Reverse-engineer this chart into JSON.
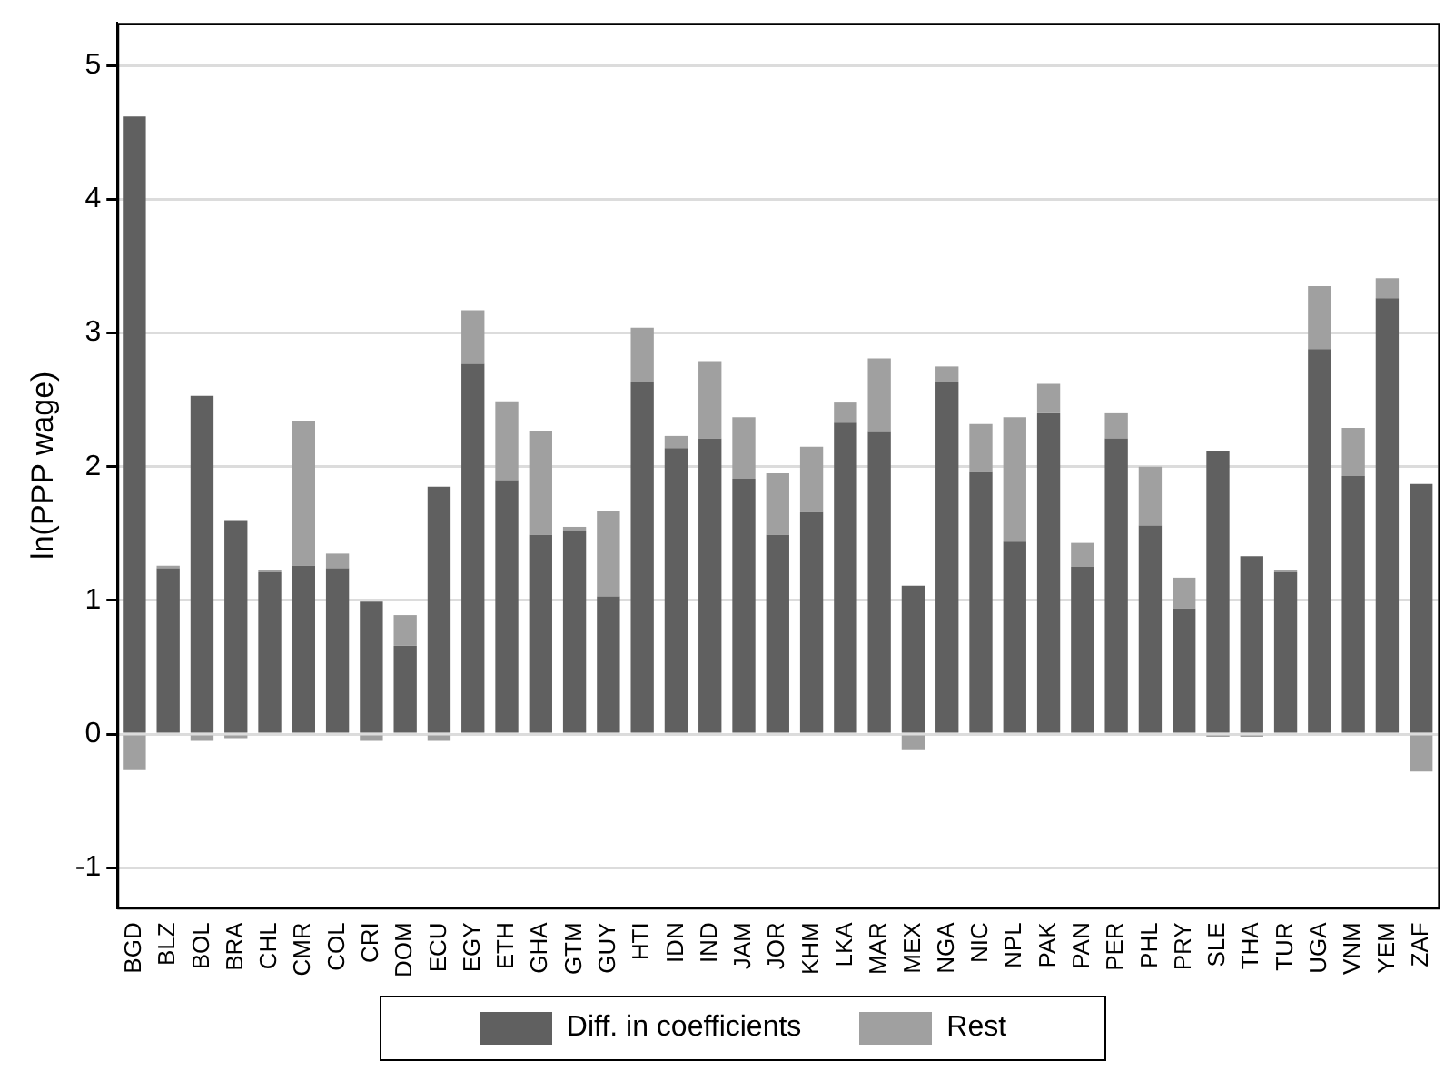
{
  "chart_data": {
    "type": "bar",
    "stacked": true,
    "ylabel": "ln(PPP wage)",
    "categories": [
      "BGD",
      "BLZ",
      "BOL",
      "BRA",
      "CHL",
      "CMR",
      "COL",
      "CRI",
      "DOM",
      "ECU",
      "EGY",
      "ETH",
      "GHA",
      "GTM",
      "GUY",
      "HTI",
      "IDN",
      "IND",
      "JAM",
      "JOR",
      "KHM",
      "LKA",
      "MAR",
      "MEX",
      "NGA",
      "NIC",
      "NPL",
      "PAK",
      "PAN",
      "PER",
      "PHL",
      "PRY",
      "SLE",
      "THA",
      "TUR",
      "UGA",
      "VNM",
      "YEM",
      "ZAF"
    ],
    "series": [
      {
        "name": "Diff. in coefficients",
        "color": "#606060",
        "values": [
          4.62,
          1.24,
          2.53,
          1.6,
          1.21,
          1.26,
          1.24,
          0.99,
          0.66,
          1.85,
          2.77,
          1.9,
          1.49,
          1.52,
          1.03,
          2.63,
          2.14,
          2.21,
          1.91,
          1.49,
          1.66,
          2.33,
          2.26,
          1.11,
          2.63,
          1.96,
          1.44,
          2.4,
          1.25,
          2.21,
          1.56,
          0.94,
          2.12,
          1.33,
          1.21,
          2.88,
          1.93,
          3.26,
          1.87
        ]
      },
      {
        "name": "Rest",
        "color": "#a0a0a0",
        "values": [
          -0.27,
          0.02,
          -0.05,
          -0.03,
          0.02,
          1.08,
          0.11,
          -0.05,
          0.23,
          -0.05,
          0.4,
          0.59,
          0.78,
          0.03,
          0.64,
          0.41,
          0.09,
          0.58,
          0.46,
          0.46,
          0.49,
          0.15,
          0.55,
          -0.12,
          0.12,
          0.36,
          0.93,
          0.22,
          0.18,
          0.19,
          0.44,
          0.23,
          -0.02,
          -0.02,
          0.02,
          0.47,
          0.36,
          0.15,
          -0.28
        ]
      }
    ],
    "ylim": [
      -1.3,
      5.32
    ],
    "yticks": [
      -1,
      0,
      1,
      2,
      3,
      4,
      5
    ],
    "grid": "y",
    "legend": "bottom"
  }
}
